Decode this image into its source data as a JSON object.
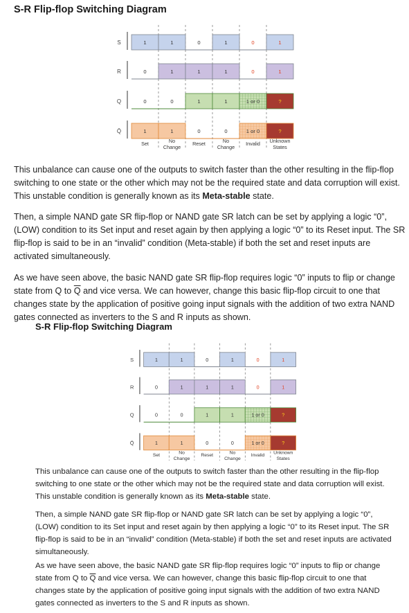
{
  "section1": {
    "title": "S-R Flip-flop Switching Diagram",
    "para1_a": "This unbalance can cause one of the outputs to switch faster than the other resulting in the flip-flop switching to one state or the other which may not be the required state and data corruption will exist. This unstable condition is generally known as its ",
    "para1_bold": "Meta-stable",
    "para1_b": " state.",
    "para2": "Then, a simple NAND gate SR flip-flop or NAND gate SR latch can be set by applying a logic “0”, (LOW) condition to its Set input and reset again by then applying a logic “0” to its Reset input. The SR flip-flop is said to be in an “invalid” condition (Meta-stable) if both the set and reset inputs are activated simultaneously.",
    "para3_a": "As we have seen above, the basic NAND gate SR flip-flop requires logic “0” inputs to flip or change state from Q to ",
    "para3_qbar": "Q",
    "para3_b": " and vice versa. We can however, change this basic flip-flop circuit to one that changes state by the application of positive going input signals with the addition of two extra NAND gates connected as inverters to the S and R inputs as shown."
  },
  "section2": {
    "title": "S-R Flip-flop Switching Diagram",
    "para1_a": "This unbalance can cause one of the outputs to switch faster than the other resulting in the flip-flop switching to one state or the other which may not be the required state and data corruption will exist. This unstable condition is generally known as its ",
    "para1_bold": "Meta-stable",
    "para1_b": " state.",
    "para2": "Then, a simple NAND gate SR flip-flop or NAND gate SR latch can be set by applying a logic “0”, (LOW) condition to its Set input and reset again by then applying a logic “0” to its Reset input. The SR flip-flop is said to be in an “invalid” condition (Meta-stable) if both the set and reset inputs are activated simultaneously.",
    "para3_a": "As we have seen above, the basic NAND gate SR flip-flop requires logic “0” inputs to flip or change state from Q to ",
    "para3_qbar": "Q",
    "para3_b": " and vice versa. We can however, change this basic flip-flop circuit to one that changes state by the application of positive going input signals with the addition of two extra NAND gates connected as inverters to the S and R inputs as shown."
  },
  "diagram": {
    "signals": [
      {
        "label": "S",
        "values": [
          "1",
          "1",
          "0",
          "1",
          "0",
          "1"
        ]
      },
      {
        "label": "R",
        "values": [
          "0",
          "1",
          "1",
          "1",
          "0",
          "1"
        ]
      },
      {
        "label": "Q",
        "values": [
          "0",
          "0",
          "1",
          "1",
          "1 or 0",
          "?"
        ]
      },
      {
        "label": "Q̄",
        "values": [
          "1",
          "1",
          "0",
          "0",
          "1 or 0",
          "?"
        ]
      }
    ],
    "columns": [
      [
        "Set"
      ],
      [
        "No",
        "Change"
      ],
      [
        "Reset"
      ],
      [
        "No",
        "Change"
      ],
      [
        "Invalid"
      ],
      [
        "Unknown",
        "States"
      ]
    ],
    "colors": {
      "S": "#c5d3ec",
      "R": "#cbbfe0",
      "Q": "#c6deb1",
      "QB": "#f6c8a2",
      "unknown": "#a63a30",
      "invalid_text": "#e04020",
      "border": "#7f8590",
      "Qline": "#4e8a3a",
      "QBline": "#e08a3a"
    }
  }
}
